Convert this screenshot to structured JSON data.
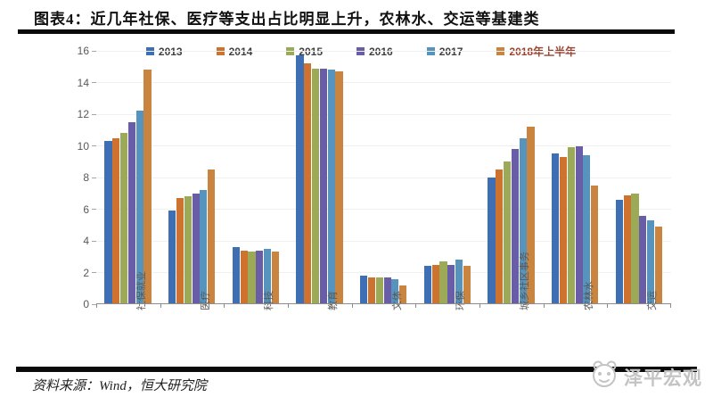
{
  "chart_data": {
    "type": "bar",
    "title": "图表4：近几年社保、医疗等支出占比明显上升，农林水、交运等基建类",
    "categories": [
      "社保就业",
      "医疗",
      "科技",
      "教育",
      "文体",
      "环保",
      "城乡社区事务",
      "农林水",
      "交运"
    ],
    "series": [
      {
        "name": "2013",
        "color": "#3E6FB5",
        "values": [
          10.3,
          5.9,
          3.6,
          15.7,
          1.8,
          2.4,
          8.0,
          9.5,
          6.6
        ]
      },
      {
        "name": "2014",
        "color": "#CE7230",
        "values": [
          10.5,
          6.7,
          3.4,
          15.2,
          1.7,
          2.5,
          8.5,
          9.3,
          6.9
        ]
      },
      {
        "name": "2015",
        "color": "#9CAA58",
        "values": [
          10.8,
          6.8,
          3.3,
          14.9,
          1.7,
          2.7,
          9.0,
          9.9,
          7.0
        ]
      },
      {
        "name": "2016",
        "color": "#6A5DA8",
        "values": [
          11.5,
          7.0,
          3.4,
          14.9,
          1.7,
          2.5,
          9.8,
          10.0,
          5.6
        ]
      },
      {
        "name": "2017",
        "color": "#5694BE",
        "values": [
          12.2,
          7.2,
          3.5,
          14.8,
          1.6,
          2.8,
          10.5,
          9.4,
          5.3
        ]
      },
      {
        "name": "2018年上半年",
        "color": "#C98540",
        "label_color": "#9C432F",
        "values": [
          14.8,
          8.5,
          3.3,
          14.7,
          1.2,
          2.4,
          11.2,
          7.5,
          4.9
        ]
      }
    ],
    "ylim": [
      0,
      16
    ],
    "ytick_step": 2,
    "grid": true,
    "legend_position": "top",
    "xlabel": "",
    "ylabel": ""
  },
  "footer": {
    "source": "资料来源：Wind，恒大研究院",
    "logo_text": "泽平宏观"
  }
}
